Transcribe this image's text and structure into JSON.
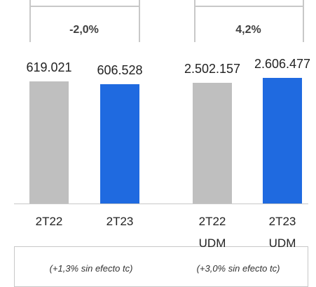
{
  "chart_data": [
    {
      "type": "bar",
      "annotation": "-2,0%",
      "note": "(+1,3% sin efecto tc)",
      "categories": [
        "2T22",
        "2T23"
      ],
      "values": [
        619021,
        606528
      ],
      "value_labels": [
        "619.021",
        "606.528"
      ],
      "colors": [
        "#bfbfbf",
        "#1f6ae0"
      ]
    },
    {
      "type": "bar",
      "annotation": "4,2%",
      "note": "(+3,0%  sin efecto tc)",
      "categories": [
        "2T22 UDM",
        "2T23 UDM"
      ],
      "values": [
        2502157,
        2606477
      ],
      "value_labels": [
        "2.502.157",
        "2.606.477"
      ],
      "colors": [
        "#bfbfbf",
        "#1f6ae0"
      ]
    }
  ]
}
